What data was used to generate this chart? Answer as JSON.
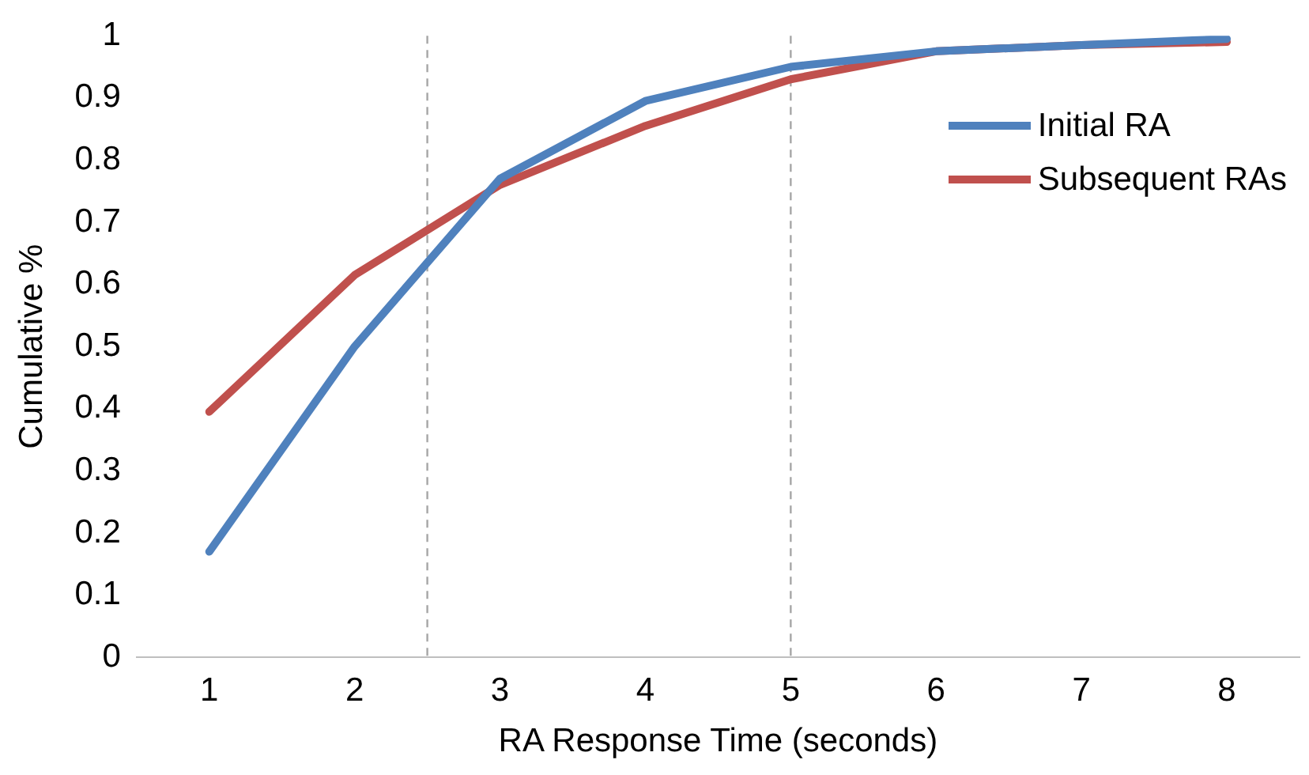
{
  "chart_data": {
    "type": "line",
    "xlabel": "RA Response Time (seconds)",
    "ylabel": "Cumulative %",
    "x": [
      1,
      2,
      3,
      4,
      5,
      6,
      7,
      8
    ],
    "xlim": [
      0.5,
      8.5
    ],
    "xticks": [
      1,
      2,
      3,
      4,
      5,
      6,
      7,
      8
    ],
    "ylim": [
      0,
      1
    ],
    "yticks": [
      0,
      0.1,
      0.2,
      0.3,
      0.4,
      0.5,
      0.6,
      0.7,
      0.8,
      0.9,
      1
    ],
    "series": [
      {
        "name": "Initial RA",
        "color": "#4f81bd",
        "values": [
          0.17,
          0.5,
          0.77,
          0.895,
          0.95,
          0.975,
          0.985,
          0.995
        ]
      },
      {
        "name": "Subsequent RAs",
        "color": "#c0504d",
        "values": [
          0.395,
          0.615,
          0.76,
          0.855,
          0.93,
          0.975,
          0.985,
          0.99
        ]
      }
    ],
    "ref_lines": [
      {
        "axis": "x",
        "value": 2.5,
        "color": "#a6a6a6",
        "line_style": "dashed"
      },
      {
        "axis": "x",
        "value": 5,
        "color": "#a6a6a6",
        "line_style": "dashed"
      }
    ],
    "grid": false,
    "legend": "top right",
    "marker": "none",
    "line_style": "solid"
  }
}
